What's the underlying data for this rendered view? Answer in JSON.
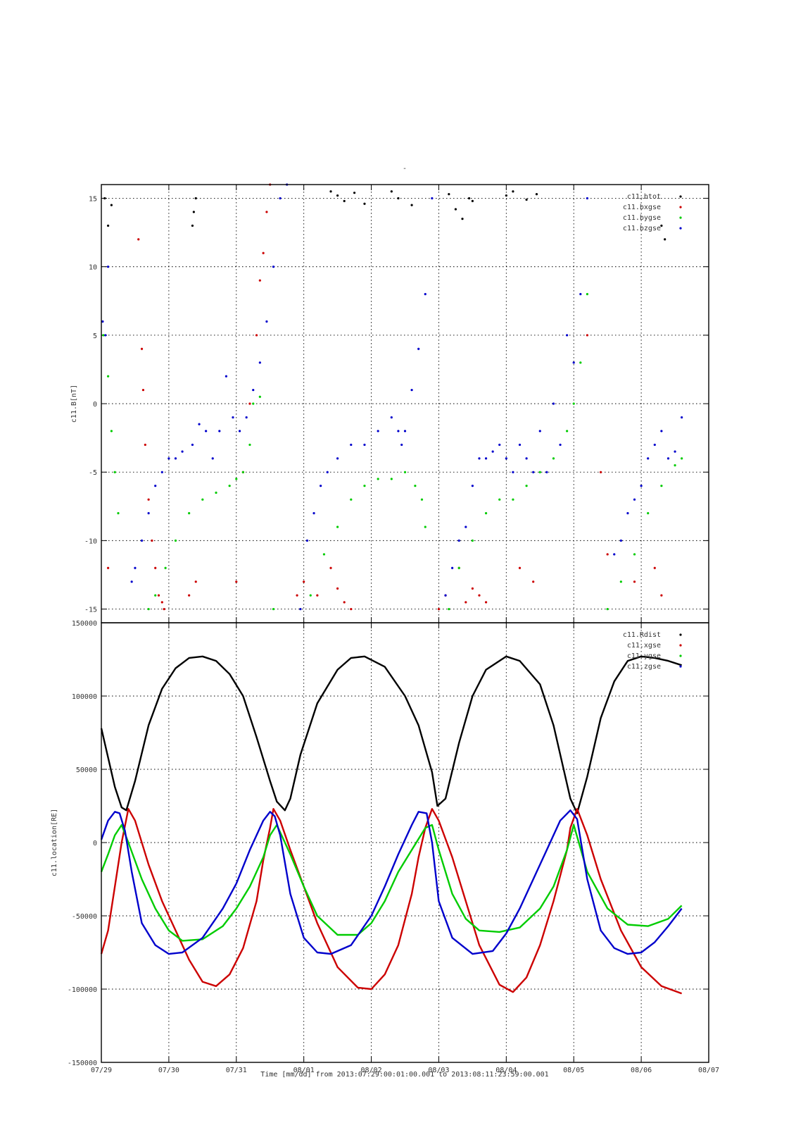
{
  "page_title": "-",
  "footer_label": "Time [mm/dd]  from 2013:07:29:00:01:00.001  to  2013:08:11:23:59:00.001",
  "x_ticks": [
    "07/29",
    "07/30",
    "07/31",
    "08/01",
    "08/02",
    "08/03",
    "08/04",
    "08/05",
    "08/06",
    "08/07"
  ],
  "colors": {
    "black": "#000000",
    "red": "#cc0000",
    "green": "#00cc00",
    "blue": "#0000cc"
  },
  "chart_data": [
    {
      "type": "scatter",
      "ylabel": "c11.B[nT]",
      "xlim": [
        0,
        9
      ],
      "ylim": [
        -16,
        16
      ],
      "y_ticks": [
        "-15",
        "-10",
        "-5",
        "0",
        "5",
        "10",
        "15"
      ],
      "y_tick_values": [
        -15,
        -10,
        -5,
        0,
        5,
        10,
        15
      ],
      "grid": true,
      "legend_position": "top-right",
      "series": [
        {
          "name": "c11.btot",
          "color": "#000000",
          "x": [
            0.05,
            0.1,
            0.15,
            1.35,
            1.37,
            1.4,
            3.4,
            3.5,
            3.6,
            3.75,
            3.9,
            4.3,
            4.4,
            4.6,
            5.15,
            5.25,
            5.35,
            5.45,
            5.5,
            6.0,
            6.1,
            6.3,
            6.45,
            8.3,
            8.35
          ],
          "y": [
            15,
            13,
            14.5,
            13,
            14,
            15,
            15.5,
            15.2,
            14.8,
            15.4,
            14.6,
            15.5,
            15,
            14.5,
            15.3,
            14.2,
            13.5,
            15,
            14.8,
            15.2,
            15.5,
            14.9,
            15.3,
            13,
            12
          ]
        },
        {
          "name": "c11.bxgse",
          "color": "#cc0000",
          "x": [
            0.1,
            0.55,
            0.6,
            0.62,
            0.65,
            0.7,
            0.75,
            0.8,
            0.85,
            0.9,
            0.93,
            1.3,
            1.4,
            2.0,
            2.1,
            2.2,
            2.3,
            2.35,
            2.4,
            2.45,
            2.5,
            2.9,
            3.0,
            3.2,
            3.4,
            3.5,
            3.6,
            3.7,
            5.0,
            5.1,
            5.3,
            5.4,
            5.5,
            5.6,
            5.7,
            6.2,
            6.4,
            7.2,
            7.4,
            7.5,
            7.9,
            8.2,
            8.3
          ],
          "y": [
            -12,
            12,
            4,
            1,
            -3,
            -7,
            -10,
            -12,
            -14,
            -14.5,
            -15,
            -14,
            -13,
            -13,
            -5,
            0,
            5,
            9,
            11,
            14,
            16,
            -14,
            -13,
            -14,
            -12,
            -13.5,
            -14.5,
            -15,
            -15,
            -14,
            -12,
            -14.5,
            -13.5,
            -14,
            -14.5,
            -12,
            -13,
            5,
            -5,
            -11,
            -13,
            -12,
            -14
          ]
        },
        {
          "name": "c11.bygse",
          "color": "#00cc00",
          "x": [
            0.03,
            0.1,
            0.15,
            0.2,
            0.25,
            0.7,
            0.8,
            0.95,
            1.1,
            1.3,
            1.5,
            1.7,
            1.9,
            2.0,
            2.1,
            2.2,
            2.25,
            2.35,
            2.55,
            3.1,
            3.3,
            3.5,
            3.7,
            3.9,
            4.1,
            4.3,
            4.5,
            4.65,
            4.75,
            4.8,
            5.15,
            5.3,
            5.5,
            5.7,
            5.9,
            6.1,
            6.3,
            6.5,
            6.7,
            6.9,
            7.0,
            7.1,
            7.2,
            7.5,
            7.7,
            7.9,
            8.1,
            8.3,
            8.5,
            8.6
          ],
          "y": [
            5,
            2,
            -2,
            -5,
            -8,
            -15,
            -14,
            -12,
            -10,
            -8,
            -7,
            -6.5,
            -6,
            -5.5,
            -5,
            -3,
            0,
            0.5,
            -15,
            -14,
            -11,
            -9,
            -7,
            -6,
            -5.5,
            -5.5,
            -5,
            -6,
            -7,
            -9,
            -15,
            -12,
            -10,
            -8,
            -7,
            -7,
            -6,
            -5,
            -4,
            -2,
            0,
            3,
            8,
            -15,
            -13,
            -11,
            -8,
            -6,
            -4.5,
            -4
          ]
        },
        {
          "name": "c11.bzgse",
          "color": "#0000cc",
          "x": [
            0.02,
            0.06,
            0.1,
            0.45,
            0.5,
            0.6,
            0.7,
            0.8,
            0.9,
            1.0,
            1.1,
            1.2,
            1.35,
            1.45,
            1.55,
            1.65,
            1.75,
            1.85,
            1.95,
            2.05,
            2.15,
            2.25,
            2.35,
            2.45,
            2.55,
            2.65,
            2.75,
            2.95,
            3.05,
            3.15,
            3.25,
            3.35,
            3.5,
            3.7,
            3.9,
            4.1,
            4.3,
            4.4,
            4.45,
            4.5,
            4.6,
            4.7,
            4.8,
            4.9,
            5.1,
            5.2,
            5.3,
            5.4,
            5.5,
            5.6,
            5.7,
            5.8,
            5.9,
            6.0,
            6.1,
            6.2,
            6.3,
            6.4,
            6.5,
            6.6,
            6.7,
            6.8,
            6.9,
            7.0,
            7.1,
            7.2,
            7.6,
            7.7,
            7.8,
            7.9,
            8.0,
            8.1,
            8.2,
            8.3,
            8.4,
            8.5,
            8.6
          ],
          "y": [
            6,
            5,
            10,
            -13,
            -12,
            -10,
            -8,
            -6,
            -5,
            -4,
            -4,
            -3.5,
            -3,
            -1.5,
            -2,
            -4,
            -2,
            2,
            -1,
            -2,
            -1,
            1,
            3,
            6,
            10,
            15,
            16,
            -15,
            -10,
            -8,
            -6,
            -5,
            -4,
            -3,
            -3,
            -2,
            -1,
            -2,
            -3,
            -2,
            1,
            4,
            8,
            15,
            -14,
            -12,
            -10,
            -9,
            -6,
            -4,
            -4,
            -3.5,
            -3,
            -4,
            -5,
            -3,
            -4,
            -5,
            -2,
            -5,
            0,
            -3,
            5,
            3,
            8,
            15,
            -11,
            -10,
            -8,
            -7,
            -6,
            -4,
            -3,
            -2,
            -4,
            -3.5,
            -1
          ]
        }
      ]
    },
    {
      "type": "line",
      "ylabel": "c11.location[RE]",
      "xlim": [
        0,
        9
      ],
      "ylim": [
        -150000,
        150000
      ],
      "y_ticks": [
        "-150000",
        "-100000",
        "-50000",
        "0",
        "50000",
        "100000",
        "150000"
      ],
      "y_tick_values": [
        -150000,
        -100000,
        -50000,
        0,
        50000,
        100000,
        150000
      ],
      "grid": true,
      "legend_position": "top-right",
      "series": [
        {
          "name": "c11.Rdist",
          "color": "#000000",
          "x": [
            0.0,
            0.1,
            0.2,
            0.3,
            0.37,
            0.5,
            0.7,
            0.9,
            1.1,
            1.3,
            1.5,
            1.7,
            1.9,
            2.1,
            2.3,
            2.5,
            2.6,
            2.72,
            2.8,
            2.95,
            3.2,
            3.5,
            3.7,
            3.9,
            4.2,
            4.5,
            4.7,
            4.9,
            4.98,
            5.1,
            5.3,
            5.5,
            5.7,
            6.0,
            6.2,
            6.5,
            6.7,
            6.95,
            7.05,
            7.2,
            7.4,
            7.6,
            7.8,
            8.0,
            8.2,
            8.4,
            8.6
          ],
          "y": [
            78000,
            58000,
            38000,
            24000,
            22000,
            42000,
            80000,
            105000,
            119000,
            126000,
            127000,
            124000,
            115000,
            100000,
            72000,
            42000,
            28000,
            22000,
            30000,
            60000,
            95000,
            118000,
            126000,
            127000,
            120000,
            100000,
            80000,
            48000,
            25000,
            30000,
            68000,
            100000,
            118000,
            127000,
            124000,
            108000,
            80000,
            30000,
            20000,
            45000,
            85000,
            110000,
            124000,
            127000,
            126000,
            124000,
            121000
          ]
        },
        {
          "name": "c11.xgse",
          "color": "#cc0000",
          "x": [
            0.0,
            0.1,
            0.2,
            0.3,
            0.4,
            0.5,
            0.7,
            0.9,
            1.1,
            1.3,
            1.5,
            1.7,
            1.9,
            2.1,
            2.3,
            2.4,
            2.5,
            2.55,
            2.65,
            2.8,
            3.0,
            3.2,
            3.5,
            3.8,
            4.0,
            4.2,
            4.4,
            4.6,
            4.7,
            4.8,
            4.9,
            5.0,
            5.2,
            5.4,
            5.6,
            5.9,
            6.1,
            6.3,
            6.5,
            6.7,
            6.9,
            6.95,
            7.05,
            7.2,
            7.4,
            7.7,
            8.0,
            8.3,
            8.6
          ],
          "y": [
            -76000,
            -60000,
            -30000,
            0,
            23000,
            15000,
            -15000,
            -40000,
            -60000,
            -80000,
            -95000,
            -98000,
            -90000,
            -72000,
            -40000,
            -12000,
            10000,
            23000,
            15000,
            -5000,
            -30000,
            -55000,
            -85000,
            -99000,
            -100000,
            -90000,
            -70000,
            -35000,
            -10000,
            10000,
            23000,
            15000,
            -10000,
            -40000,
            -70000,
            -97000,
            -102000,
            -92000,
            -70000,
            -40000,
            -5000,
            10000,
            23000,
            5000,
            -25000,
            -60000,
            -85000,
            -98000,
            -103000
          ]
        },
        {
          "name": "c11.ygse",
          "color": "#00cc00",
          "x": [
            0.0,
            0.1,
            0.2,
            0.3,
            0.4,
            0.6,
            0.8,
            1.0,
            1.2,
            1.5,
            1.8,
            2.0,
            2.2,
            2.4,
            2.5,
            2.6,
            2.8,
            3.0,
            3.2,
            3.5,
            3.8,
            4.0,
            4.2,
            4.4,
            4.6,
            4.8,
            4.9,
            5.0,
            5.2,
            5.4,
            5.6,
            5.9,
            6.2,
            6.5,
            6.7,
            6.9,
            7.0,
            7.2,
            7.5,
            7.8,
            8.1,
            8.4,
            8.6
          ],
          "y": [
            -20000,
            -8000,
            5000,
            12000,
            0,
            -25000,
            -45000,
            -60000,
            -67000,
            -66000,
            -57000,
            -45000,
            -30000,
            -10000,
            5000,
            12000,
            -8000,
            -30000,
            -50000,
            -63000,
            -63000,
            -55000,
            -40000,
            -20000,
            -5000,
            10000,
            12000,
            -5000,
            -35000,
            -52000,
            -60000,
            -61000,
            -58000,
            -45000,
            -30000,
            -5000,
            12000,
            -20000,
            -45000,
            -56000,
            -57000,
            -52000,
            -43000
          ]
        },
        {
          "name": "c11.zgse",
          "color": "#0000cc",
          "x": [
            0.0,
            0.1,
            0.2,
            0.27,
            0.35,
            0.45,
            0.6,
            0.8,
            1.0,
            1.2,
            1.5,
            1.8,
            2.0,
            2.2,
            2.4,
            2.5,
            2.57,
            2.65,
            2.8,
            3.0,
            3.2,
            3.4,
            3.7,
            4.0,
            4.2,
            4.4,
            4.6,
            4.7,
            4.82,
            4.9,
            5.0,
            5.2,
            5.5,
            5.8,
            6.0,
            6.2,
            6.4,
            6.6,
            6.8,
            6.95,
            7.05,
            7.2,
            7.4,
            7.6,
            7.8,
            8.0,
            8.2,
            8.4,
            8.6
          ],
          "y": [
            2000,
            15000,
            21000,
            20000,
            8000,
            -20000,
            -55000,
            -70000,
            -76000,
            -75000,
            -65000,
            -45000,
            -28000,
            -5000,
            15000,
            21000,
            18000,
            5000,
            -35000,
            -65000,
            -75000,
            -76000,
            -70000,
            -50000,
            -30000,
            -8000,
            12000,
            21000,
            20000,
            0,
            -40000,
            -65000,
            -76000,
            -74000,
            -62000,
            -45000,
            -25000,
            -5000,
            15000,
            22000,
            16000,
            -25000,
            -60000,
            -72000,
            -76000,
            -75000,
            -68000,
            -57000,
            -45000
          ]
        }
      ]
    }
  ]
}
